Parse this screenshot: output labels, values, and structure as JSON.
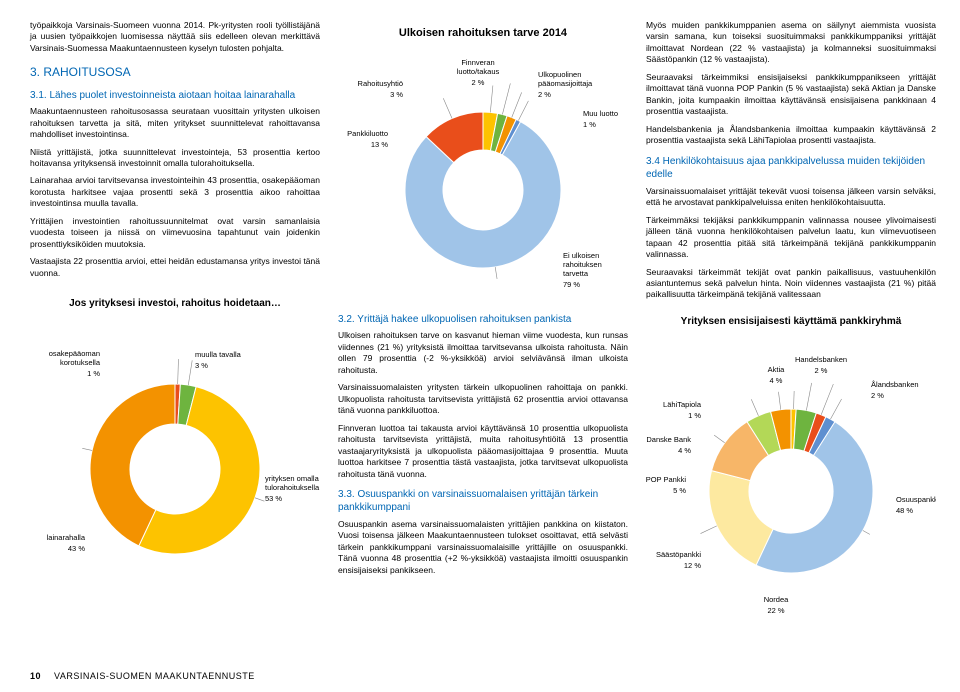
{
  "col1": {
    "p1": "työpaikkoja Varsinais-Suomeen vuonna 2014. Pk-yritysten rooli työllistäjänä ja uusien työpaikkojen luomisessa näyttää siis edelleen olevan merkittävä Varsinais-Suomessa Maakuntaennusteen kyselyn tulosten pohjalta.",
    "h_sec": "3. RAHOITUSOSA",
    "h_sub": "3.1. Lähes puolet investoinneista aiotaan hoitaa lainarahalla",
    "p2": "Maakuntaennusteen rahoitusosassa seurataan vuosittain yritysten ulkoisen rahoituksen tarvetta ja sitä, miten yritykset suunnittelevat rahoittavansa mahdolliset investointinsa.",
    "p3": "Niistä yrittäjistä, jotka suunnittelevat investointeja, 53 prosenttia kertoo hoitavansa yrityksensä investoinnit omalla tulorahoituksella.",
    "p4": "Lainarahaa arvioi tarvitsevansa investointeihin 43 prosenttia, osakepääoman korotusta harkitsee vajaa prosentti sekä 3 prosenttia aikoo rahoittaa investointinsa muulla tavalla.",
    "p5": "Yrittäjien investointien rahoitussuunnitelmat ovat varsin samanlaisia vuodesta toiseen ja niissä on viimevuosina tapahtunut vain joidenkin prosenttiyksiköiden muutoksia.",
    "p6": "Vastaajista 22 prosenttia arvioi, ettei heidän edustamansa yritys investoi tänä vuonna."
  },
  "chart1": {
    "title": "Jos yrityksesi investoi, rahoitus hoidetaan…",
    "slices": [
      {
        "label": "osakepääoman korotuksella",
        "pct": "1 %",
        "color": "#e94e1b",
        "value": 1
      },
      {
        "label": "muulla tavalla",
        "pct": "3 %",
        "color": "#6eb43f",
        "value": 3
      },
      {
        "label": "yrityksen omalla tulorahoituksella",
        "pct": "53 %",
        "color": "#fdc300",
        "value": 53
      },
      {
        "label": "lainarahalla",
        "pct": "43 %",
        "color": "#f39200",
        "value": 43
      }
    ],
    "inner_bg": "#ffffff"
  },
  "col2": {
    "title": "Ulkoisen rahoituksen tarve 2014",
    "h32": "3.2. Yrittäjä hakee ulkopuolisen rahoituksen pankista",
    "p1": "Ulkoisen rahoituksen tarve on kasvanut hieman viime vuodesta, kun runsas viidennes (21 %) yrityksistä ilmoittaa tarvitsevansa ulkoista rahoitusta. Näin ollen 79 prosenttia (-2 %-yksikköä) arvioi selviävänsä ilman ulkoista rahoitusta.",
    "p2": "Varsinaissuomalaisten yritysten tärkein ulkopuolinen rahoittaja on pankki. Ulkopuolista rahoitusta tarvitsevista yrittäjistä 62 prosenttia arvioi ottavansa tänä vuonna pankkiluottoa.",
    "p3": "Finnveran luottoa tai takausta arvioi käyttävänsä 10 prosenttia ulkopuolista rahoitusta tarvitsevista yrittäjistä, muita rahoitusyhtiöitä 13 prosenttia vastaajaryrityksistä ja ulkopuolista pääomasijoittajaa 9 prosenttia. Muuta luottoa harkitsee 7 prosenttia tästä vastaajista, jotka tarvitsevat ulkopuolista rahoitusta tänä vuonna.",
    "h33": "3.3. Osuuspankki on varsinaissuomalaisen yrittäjän tärkein pankkikumppani",
    "p4": "Osuuspankin asema varsinaissuomalaisten yrittäjien pankkina on kiistaton. Vuosi toisensa jälkeen Maakuntaennusteen tulokset osoittavat, että selvästi tärkein pankkikumppani varsinaissuomalaisille yrittäjille on osuuspankki. Tänä vuonna 48 prosenttia (+2 %-yksikköä) vastaajista ilmoitti osuuspankin ensisijaiseksi pankikseen."
  },
  "chart2": {
    "slices": [
      {
        "label": "Rahoitusyhtiö",
        "pct": "3 %",
        "value": 3,
        "color": "#fdc300"
      },
      {
        "label": "Finnveran luotto/takaus",
        "pct": "2 %",
        "value": 2,
        "color": "#6eb43f"
      },
      {
        "label": "Ulkopuolinen pääomasijoittaja",
        "pct": "2 %",
        "value": 2,
        "color": "#f39200"
      },
      {
        "label": "Muu luotto",
        "pct": "1 %",
        "value": 1,
        "color": "#5e8fd0"
      },
      {
        "label": "Ei ulkoisen rahoituksen tarvetta",
        "pct": "79 %",
        "value": 79,
        "color": "#a0c4e8"
      },
      {
        "label": "Pankkiluotto",
        "pct": "13 %",
        "value": 13,
        "color": "#e94e1b"
      }
    ]
  },
  "col3": {
    "p1": "Myös muiden pankkikumppanien asema on säilynyt aiemmista vuosista varsin samana, kun toiseksi suosituimmaksi pankkikumppaniksi yrittäjät ilmoittavat Nordean (22 % vastaajista) ja kolmanneksi suosituimmaksi Säästöpankin (12 % vastaajista).",
    "p2": "Seuraavaksi tärkeimmiksi ensisijaiseksi pankkikumppanikseen yrittäjät ilmoittavat tänä vuonna POP Pankin (5 % vastaajista) sekä Aktian ja Danske Bankin, joita kumpaakin ilmoittaa käyttävänsä ensisijaisena pankkinaan 4 prosenttia vastaajista.",
    "p3": "Handelsbankenia ja Ålandsbankenia ilmoittaa kumpaakin käyttävänsä 2 prosenttia vastaajista sekä LähiTapiolaa prosentti vastaajista.",
    "h34": "3.4 Henkilökohtaisuus ajaa pankkipalvelussa muiden tekijöiden edelle",
    "p4": "Varsinaissuomalaiset yrittäjät tekevät vuosi toisensa jälkeen varsin selväksi, että he arvostavat pankkipalveluissa eniten henkilökohtaisuutta.",
    "p5": "Tärkeimmäksi tekijäksi pankkikumppanin valinnassa nousee ylivoimaisesti jälleen tänä vuonna henkilökohtaisen palvelun laatu, kun viimevuotiseen tapaan 42 prosenttia pitää sitä tärkeimpänä tekijänä pankkikumppanin valinnassa.",
    "p6": "Seuraavaksi tärkeimmät tekijät ovat pankin paikallisuus, vastuuhenkilön asiantuntemus sekä palvelun hinta. Noin viidennes vastaajista (21 %) pitää paikallisuutta tärkeimpänä tekijänä valitessaan"
  },
  "chart3": {
    "title": "Yrityksen ensisijaisesti käyttämä pankkiryhmä",
    "slices": [
      {
        "label": "LähiTapiola",
        "pct": "1 %",
        "value": 1,
        "color": "#fdc300"
      },
      {
        "label": "Aktia",
        "pct": "4 %",
        "value": 4,
        "color": "#6eb43f"
      },
      {
        "label": "Handelsbanken",
        "pct": "2 %",
        "value": 2,
        "color": "#e94e1b"
      },
      {
        "label": "Ålandsbanken",
        "pct": "2 %",
        "value": 2,
        "color": "#5e8fd0"
      },
      {
        "label": "Osuuspankki",
        "pct": "48 %",
        "value": 48,
        "color": "#a0c4e8"
      },
      {
        "label": "Nordea",
        "pct": "22 %",
        "value": 22,
        "color": "#fde9a0"
      },
      {
        "label": "Säästöpankki",
        "pct": "12 %",
        "value": 12,
        "color": "#f7b668"
      },
      {
        "label": "POP Pankki",
        "pct": "5 %",
        "value": 5,
        "color": "#b3d857"
      },
      {
        "label": "Danske Bank",
        "pct": "4 %",
        "value": 4,
        "color": "#f39200"
      }
    ]
  },
  "footer": {
    "page": "10",
    "title": "VARSINAIS-SUOMEN MAAKUNTAENNUSTE"
  }
}
